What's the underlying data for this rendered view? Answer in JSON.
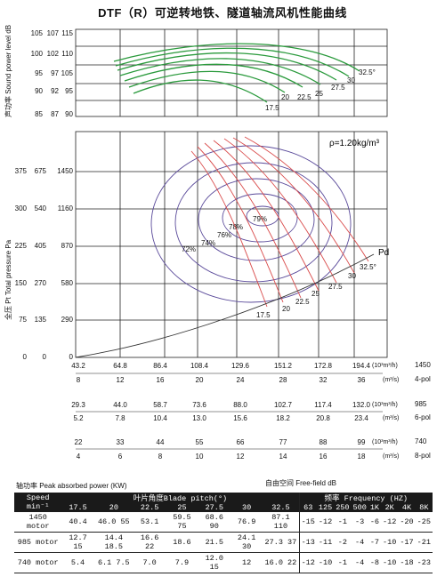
{
  "title": "DTF（R）可逆转地铁、隧道轴流风机性能曲线",
  "axes": {
    "sound_label": "声功率 Sound power level dB",
    "pressure_label": "全压 Pt Total pressure Pa",
    "sound_ticks_a": [
      "85",
      "90",
      "95",
      "100",
      "105"
    ],
    "sound_ticks_b": [
      "87",
      "92",
      "97",
      "102",
      "107"
    ],
    "sound_ticks_c": [
      "90",
      "95",
      "105",
      "110",
      "115"
    ],
    "pressure_ticks_a": [
      "0",
      "75",
      "150",
      "225",
      "300",
      "375"
    ],
    "pressure_ticks_b": [
      "0",
      "135",
      "270",
      "405",
      "540",
      "675"
    ],
    "pressure_ticks_c": [
      "0",
      "290",
      "580",
      "870",
      "1160",
      "1450"
    ],
    "density": "ρ=1.20kg/m³"
  },
  "chart_data": [
    {
      "type": "line",
      "name": "sound",
      "series_labels": [
        "17.5",
        "20",
        "22.5",
        "25",
        "27.5",
        "30",
        "32.5°"
      ]
    },
    {
      "type": "line",
      "name": "pressure",
      "blade_labels": [
        "17.5",
        "20",
        "22.5",
        "25",
        "27.5",
        "30",
        "32.5°"
      ],
      "efficiency_labels": [
        "72%",
        "74%",
        "76%",
        "78%",
        "79%"
      ],
      "pd_label": "Pd"
    }
  ],
  "flow_scales": [
    {
      "ticks": [
        "43.2",
        "64.8",
        "86.4",
        "108.4",
        "129.6",
        "151.2",
        "172.8",
        "194.4"
      ],
      "unit": "(10³m³/h)",
      "speed": "1450"
    },
    {
      "ticks": [
        "8",
        "12",
        "16",
        "20",
        "24",
        "28",
        "32",
        "36"
      ],
      "unit": "(m³/s)",
      "speed": "4-pol"
    },
    {
      "ticks": [
        "29.3",
        "44.0",
        "58.7",
        "73.6",
        "88.0",
        "102.7",
        "117.4",
        "132.0"
      ],
      "unit": "(10³m³/h)",
      "speed": "985"
    },
    {
      "ticks": [
        "5.2",
        "7.8",
        "10.4",
        "13.0",
        "15.6",
        "18.2",
        "20.8",
        "23.4"
      ],
      "unit": "(m³/s)",
      "speed": "6-pol"
    },
    {
      "ticks": [
        "22",
        "33",
        "44",
        "55",
        "66",
        "77",
        "88",
        "99"
      ],
      "unit": "(10³m³/h)",
      "speed": "740"
    },
    {
      "ticks": [
        "4",
        "6",
        "8",
        "10",
        "12",
        "14",
        "16",
        "18"
      ],
      "unit": "(m³/s)",
      "speed": "8-pol"
    }
  ],
  "table": {
    "title": "轴功率 Peak absorbed power (KW)",
    "free_field": "自由空间  Free-field  dB",
    "col_speed": "Speed min⁻¹",
    "col_blade": "叶片角度Blade pitch(°)",
    "col_freq": "频率 Frequency (HZ)",
    "blade_cols": [
      "17.5",
      "20",
      "22.5",
      "25",
      "27.5",
      "30",
      "32.5"
    ],
    "freq_cols": [
      "63",
      "125",
      "250",
      "500",
      "1K",
      "2K",
      "4K",
      "8K"
    ],
    "rows": [
      {
        "speed": "1450 motor",
        "p": [
          "40.4",
          "46.0 55",
          "53.1",
          "59.5 75",
          "68.6 90",
          "76.9",
          "87.1 110"
        ],
        "f": [
          "-15",
          "-12",
          "-1",
          "-3",
          "-6",
          "-12",
          "-20",
          "-25"
        ]
      },
      {
        "speed": "985 motor",
        "p": [
          "12.7 15",
          "14.4 18.5",
          "16.6 22",
          "18.6",
          "21.5",
          "24.1 30",
          "27.3 37"
        ],
        "f": [
          "-13",
          "-11",
          "-2",
          "-4",
          "-7",
          "-10",
          "-17",
          "-21"
        ]
      },
      {
        "speed": "740 motor",
        "p": [
          "5.4",
          "6.1 7.5",
          "7.0",
          "7.9",
          "12.0 15",
          "12",
          "16.0 22"
        ],
        "f": [
          "-12",
          "-10",
          "-1",
          "-4",
          "-8",
          "-10",
          "-18",
          "-23"
        ]
      }
    ]
  }
}
